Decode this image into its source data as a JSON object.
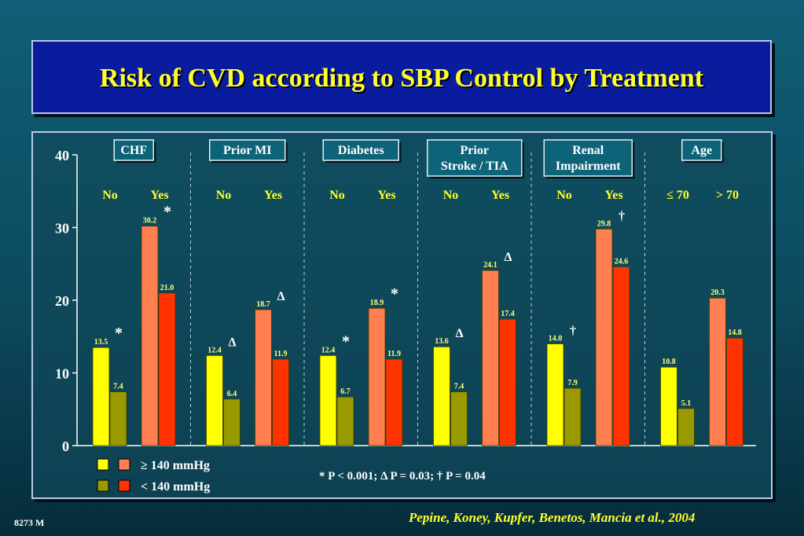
{
  "title": "Risk of CVD according to SBP Control by Treatment",
  "citation": "Pepine, Koney, Kupfer, Benetos, Mancia et al., 2004",
  "slide_code": "8273 M",
  "colors": {
    "no_high": "#ffff00",
    "no_low": "#999900",
    "yes_high": "#ff7f50",
    "yes_low": "#ff3300",
    "title_bg": "#0a1c9e",
    "title_text": "#ffff2b",
    "header_bg": "#0d6378"
  },
  "chart_data": {
    "type": "bar",
    "ylim": [
      0,
      40
    ],
    "yticks": [
      "0",
      "10",
      "20",
      "30",
      "40"
    ],
    "series": [
      {
        "name": "≥ 140 mmHg"
      },
      {
        "name": "< 140 mmHg"
      }
    ],
    "footnote": "* P < 0.001; Δ P = 0.03; † P = 0.04",
    "groups": [
      {
        "header": [
          "CHF"
        ],
        "sub_labels": [
          "No",
          "Yes"
        ],
        "bars": [
          {
            "value": 13.5,
            "label": "13.5",
            "series": "≥ 140 mmHg",
            "pair": "no",
            "marker": "*"
          },
          {
            "value": 7.4,
            "label": "7.4",
            "series": "< 140 mmHg",
            "pair": "no",
            "marker": ""
          },
          {
            "value": 30.2,
            "label": "30.2",
            "series": "≥ 140 mmHg",
            "pair": "yes",
            "marker": "*"
          },
          {
            "value": 21.0,
            "label": "21.0",
            "series": "< 140 mmHg",
            "pair": "yes",
            "marker": ""
          }
        ]
      },
      {
        "header": [
          "Prior MI"
        ],
        "sub_labels": [
          "No",
          "Yes"
        ],
        "bars": [
          {
            "value": 12.4,
            "label": "12.4",
            "series": "≥ 140 mmHg",
            "pair": "no",
            "marker": "Δ"
          },
          {
            "value": 6.4,
            "label": "6.4",
            "series": "< 140 mmHg",
            "pair": "no",
            "marker": ""
          },
          {
            "value": 18.7,
            "label": "18.7",
            "series": "≥ 140 mmHg",
            "pair": "yes",
            "marker": "Δ"
          },
          {
            "value": 11.9,
            "label": "11.9",
            "series": "< 140 mmHg",
            "pair": "yes",
            "marker": ""
          }
        ]
      },
      {
        "header": [
          "Diabetes"
        ],
        "sub_labels": [
          "No",
          "Yes"
        ],
        "bars": [
          {
            "value": 12.4,
            "label": "12.4",
            "series": "≥ 140 mmHg",
            "pair": "no",
            "marker": "*"
          },
          {
            "value": 6.7,
            "label": "6.7",
            "series": "< 140 mmHg",
            "pair": "no",
            "marker": ""
          },
          {
            "value": 18.9,
            "label": "18.9",
            "series": "≥ 140 mmHg",
            "pair": "yes",
            "marker": "*"
          },
          {
            "value": 11.9,
            "label": "11.9",
            "series": "< 140 mmHg",
            "pair": "yes",
            "marker": ""
          }
        ]
      },
      {
        "header": [
          "Prior",
          "Stroke / TIA"
        ],
        "sub_labels": [
          "No",
          "Yes"
        ],
        "bars": [
          {
            "value": 13.6,
            "label": "13.6",
            "series": "≥ 140 mmHg",
            "pair": "no",
            "marker": "Δ"
          },
          {
            "value": 7.4,
            "label": "7.4",
            "series": "< 140 mmHg",
            "pair": "no",
            "marker": ""
          },
          {
            "value": 24.1,
            "label": "24.1",
            "series": "≥ 140 mmHg",
            "pair": "yes",
            "marker": "Δ"
          },
          {
            "value": 17.4,
            "label": "17.4",
            "series": "< 140 mmHg",
            "pair": "yes",
            "marker": ""
          }
        ]
      },
      {
        "header": [
          "Renal",
          "Impairment"
        ],
        "sub_labels": [
          "No",
          "Yes"
        ],
        "bars": [
          {
            "value": 14.0,
            "label": "14.0",
            "series": "≥ 140 mmHg",
            "pair": "no",
            "marker": "†"
          },
          {
            "value": 7.9,
            "label": "7.9",
            "series": "< 140 mmHg",
            "pair": "no",
            "marker": ""
          },
          {
            "value": 29.8,
            "label": "29.8",
            "series": "≥ 140 mmHg",
            "pair": "yes",
            "marker": "†"
          },
          {
            "value": 24.6,
            "label": "24.6",
            "series": "< 140 mmHg",
            "pair": "yes",
            "marker": ""
          }
        ]
      },
      {
        "header": [
          "Age"
        ],
        "sub_labels": [
          "≤ 70",
          "> 70"
        ],
        "bars": [
          {
            "value": 10.8,
            "label": "10.8",
            "series": "≥ 140 mmHg",
            "pair": "no",
            "marker": ""
          },
          {
            "value": 5.1,
            "label": "5.1",
            "series": "< 140 mmHg",
            "pair": "no",
            "marker": ""
          },
          {
            "value": 20.3,
            "label": "20.3",
            "series": "≥ 140 mmHg",
            "pair": "yes",
            "marker": ""
          },
          {
            "value": 14.8,
            "label": "14.8",
            "series": "< 140 mmHg",
            "pair": "yes",
            "marker": ""
          }
        ]
      }
    ]
  }
}
